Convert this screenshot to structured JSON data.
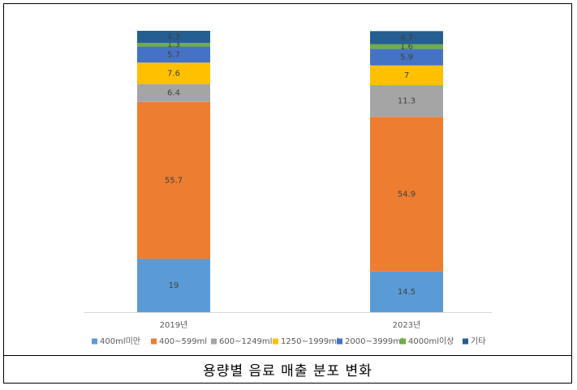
{
  "caption": "용량별 음료 매출 분포 변화",
  "chart_data": {
    "type": "bar",
    "stacked": true,
    "categories": [
      "2019년",
      "2023년"
    ],
    "series": [
      {
        "name": "400ml미만",
        "color": "#5B9BD5",
        "values": [
          19,
          14.5
        ]
      },
      {
        "name": "400~599ml",
        "color": "#ED7D31",
        "values": [
          55.7,
          54.9
        ]
      },
      {
        "name": "600~1249ml",
        "color": "#A5A5A5",
        "values": [
          6.4,
          11.3
        ]
      },
      {
        "name": "1250~1999ml",
        "color": "#FFC000",
        "values": [
          7.6,
          7
        ]
      },
      {
        "name": "2000~3999ml",
        "color": "#4472C4",
        "values": [
          5.7,
          5.9
        ]
      },
      {
        "name": "4000ml이상",
        "color": "#70AD47",
        "values": [
          1.3,
          1.6
        ]
      },
      {
        "name": "기타",
        "color": "#255E91",
        "values": [
          4.3,
          4.7
        ]
      }
    ],
    "ylim": [
      0,
      100
    ],
    "legend_position": "bottom",
    "grid": false
  }
}
